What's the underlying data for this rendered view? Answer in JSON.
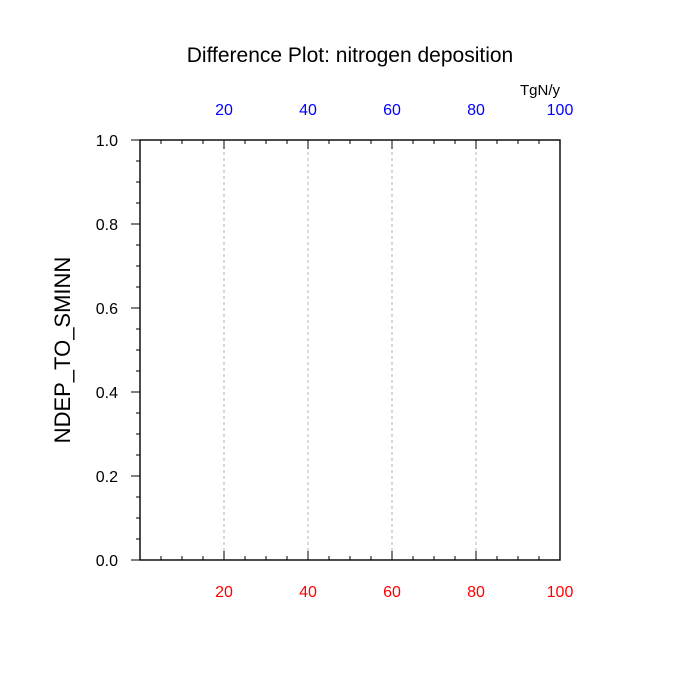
{
  "chart_data": {
    "type": "line",
    "title": "Difference Plot: nitrogen deposition",
    "ylabel": "NDEP_TO_SMINN",
    "top_axis_unit": "TgN/y",
    "xlim": [
      0,
      100
    ],
    "ylim": [
      0,
      1
    ],
    "x_ticks": [
      20,
      40,
      60,
      80,
      100
    ],
    "x_tick_labels": [
      "20",
      "40",
      "60",
      "80",
      "100"
    ],
    "y_ticks": [
      0,
      0.2,
      0.4,
      0.6,
      0.8,
      1.0
    ],
    "y_tick_labels": [
      "0.0",
      "0.2",
      "0.4",
      "0.6",
      "0.8",
      "1.0"
    ],
    "grid": "x-dashed",
    "series": [],
    "colors": {
      "bottom_tick_labels": "#ff0000",
      "top_tick_labels": "#0000ff",
      "grid": "#b4b4b4",
      "frame": "#000000"
    }
  }
}
